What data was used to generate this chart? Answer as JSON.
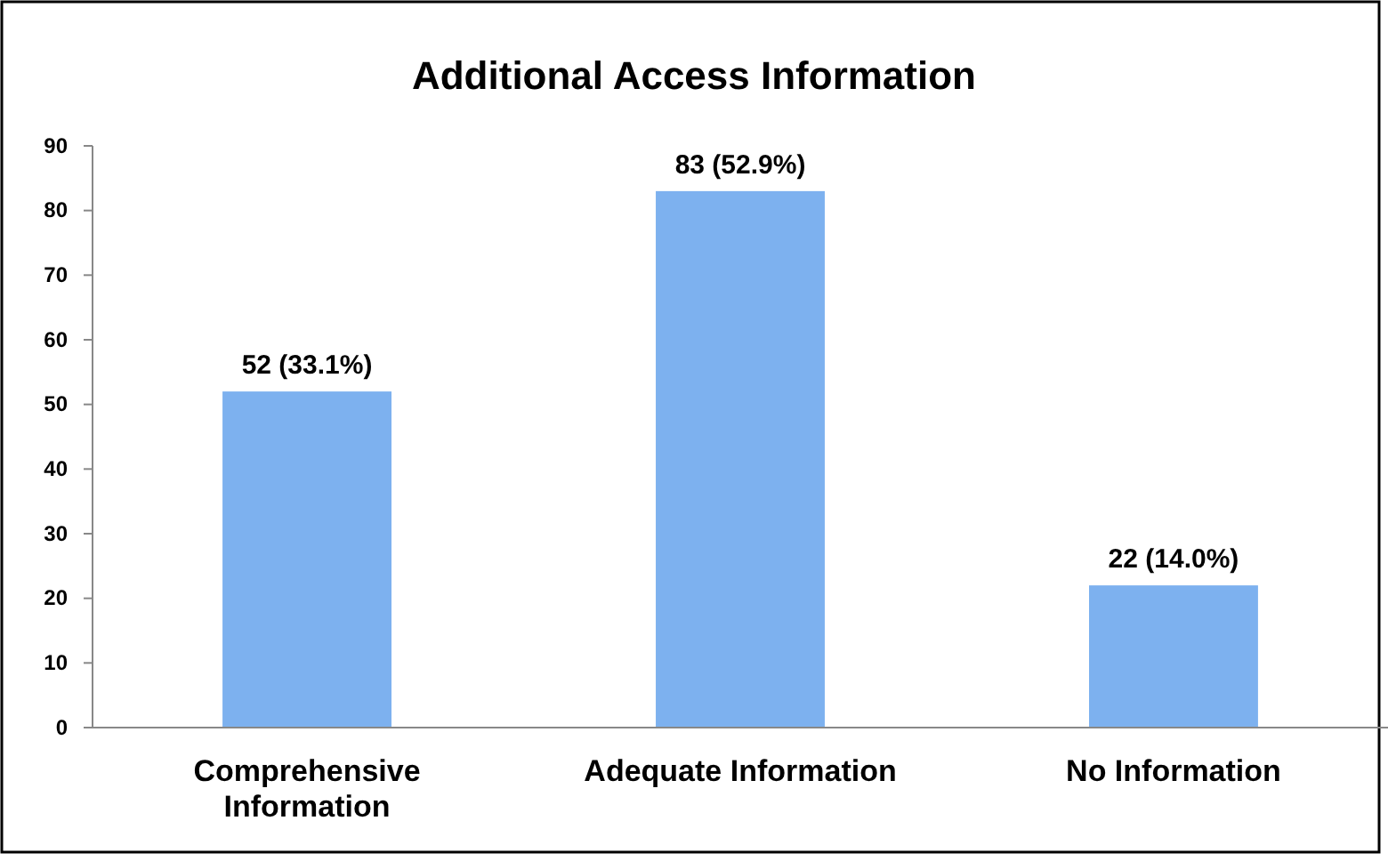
{
  "chart_data": {
    "type": "bar",
    "title": "Additional Access Information",
    "categories": [
      "Comprehensive Information",
      "Adequate Information",
      "No Information"
    ],
    "values": [
      52,
      83,
      22
    ],
    "value_labels": [
      "52 (33.1%)",
      "83 (52.9%)",
      "22 (14.0%)"
    ],
    "color": "#7db1ef",
    "ylim": [
      0,
      90
    ],
    "yticks": [
      0,
      10,
      20,
      30,
      40,
      50,
      60,
      70,
      80,
      90
    ],
    "grid": false
  }
}
